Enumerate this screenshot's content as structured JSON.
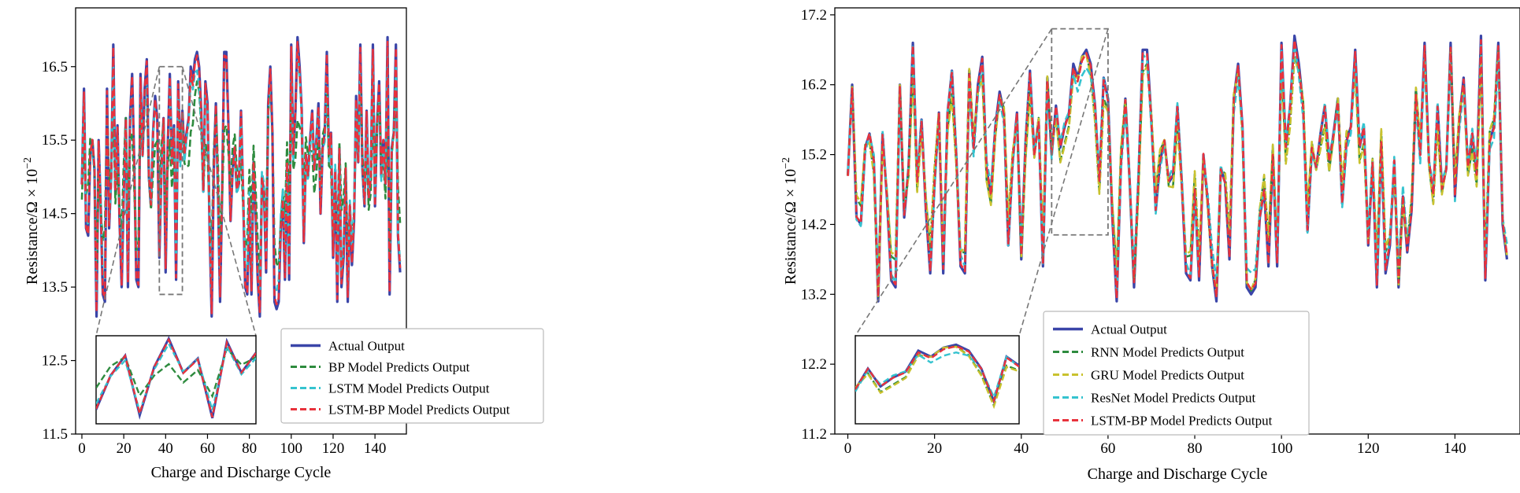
{
  "chart_data": [
    {
      "type": "line",
      "xlabel": "Charge and Discharge Cycle",
      "ylabel": "Resistance/Ω × 10",
      "ylabel_exp": "−2",
      "xlim": [
        -3,
        155
      ],
      "ylim": [
        11.5,
        17.3
      ],
      "xticks": [
        "0",
        "20",
        "40",
        "60",
        "80",
        "100",
        "120",
        "140"
      ],
      "yticks": [
        "11.5",
        "12.5",
        "13.5",
        "14.5",
        "15.5",
        "16.5"
      ],
      "legend_position": "lower-center",
      "inset_zoom_x": [
        37,
        48
      ],
      "inset_zoom_y": [
        13.4,
        16.5
      ],
      "actual": [
        14.9,
        16.2,
        14.3,
        14.2,
        15.3,
        15.5,
        15.1,
        13.1,
        15.5,
        14.6,
        13.4,
        13.3,
        16.2,
        14.3,
        15.0,
        16.8,
        14.8,
        15.7,
        14.4,
        13.5,
        14.8,
        15.8,
        13.5,
        15.8,
        16.4,
        15.2,
        13.6,
        13.5,
        16.4,
        15.3,
        16.2,
        16.6,
        15.0,
        14.6,
        15.6,
        16.1,
        15.8,
        13.9,
        15.1,
        15.8,
        13.7,
        15.4,
        16.4,
        15.2,
        15.7,
        13.6,
        16.3,
        15.2,
        15.9,
        15.3,
        15.6,
        15.8,
        16.5,
        16.3,
        16.6,
        16.7,
        16.5,
        15.9,
        14.8,
        16.3,
        16.0,
        14.3,
        13.1,
        15.1,
        16.0,
        14.8,
        13.3,
        14.8,
        16.7,
        16.7,
        15.7,
        14.4,
        15.1,
        15.4,
        14.8,
        14.9,
        15.9,
        14.8,
        13.5,
        13.4,
        14.7,
        13.4,
        15.2,
        14.5,
        13.6,
        13.1,
        15.0,
        14.8,
        13.7,
        16.0,
        16.5,
        15.6,
        13.3,
        13.2,
        13.3,
        14.3,
        14.7,
        13.6,
        15.2,
        13.6,
        16.8,
        15.3,
        15.9,
        16.9,
        16.5,
        15.9,
        14.1,
        15.3,
        15.0,
        15.5,
        15.9,
        15.1,
        15.5,
        16.0,
        14.5,
        15.4,
        15.6,
        16.7,
        15.3,
        15.6,
        13.9,
        15.1,
        13.3,
        15.4,
        13.5,
        13.9,
        15.1,
        13.3,
        14.6,
        13.8,
        14.4,
        16.1,
        15.2,
        16.8,
        15.1,
        14.6,
        15.9,
        14.7,
        15.0,
        16.8,
        14.6,
        15.7,
        16.3,
        15.0,
        15.5,
        14.9,
        16.9,
        13.4,
        15.4,
        15.6,
        16.8,
        14.2,
        13.7
      ],
      "series": [
        {
          "name": "Actual Output",
          "color": "#3a45a8",
          "dash": "solid"
        },
        {
          "name": "BP Model Predicts Output",
          "color": "#2e8b3e",
          "dash": "dashed",
          "offset": 0.55,
          "blend": 0.45
        },
        {
          "name": "LSTM Model Predicts Output",
          "color": "#35c3cf",
          "dash": "dashed",
          "offset": 0.12,
          "blend": 0.15
        },
        {
          "name": "LSTM-BP Model Predicts Output",
          "color": "#e8323c",
          "dash": "dashed",
          "offset": 0.03,
          "blend": 0.03
        }
      ]
    },
    {
      "type": "line",
      "xlabel": "Charge and Discharge Cycle",
      "ylabel": "Resistance/Ω × 10",
      "ylabel_exp": "−2",
      "xlim": [
        -3,
        155
      ],
      "ylim": [
        11.2,
        17.3
      ],
      "xticks": [
        "0",
        "20",
        "40",
        "60",
        "80",
        "100",
        "120",
        "140"
      ],
      "yticks": [
        "11.2",
        "12.2",
        "13.2",
        "14.2",
        "15.2",
        "16.2",
        "17.2"
      ],
      "legend_position": "lower-center",
      "inset_zoom_x": [
        47,
        60
      ],
      "inset_zoom_y": [
        14.05,
        17.0
      ],
      "actual": [
        14.9,
        16.2,
        14.3,
        14.2,
        15.3,
        15.5,
        15.1,
        13.1,
        15.5,
        14.6,
        13.4,
        13.3,
        16.2,
        14.3,
        15.0,
        16.8,
        14.8,
        15.7,
        14.4,
        13.5,
        14.8,
        15.8,
        13.5,
        15.8,
        16.4,
        15.2,
        13.6,
        13.5,
        16.4,
        15.3,
        16.2,
        16.6,
        15.0,
        14.6,
        15.6,
        16.1,
        15.8,
        13.9,
        15.1,
        15.8,
        13.7,
        15.4,
        16.4,
        15.2,
        15.7,
        13.6,
        16.3,
        15.2,
        15.9,
        15.3,
        15.6,
        15.8,
        16.5,
        16.3,
        16.6,
        16.7,
        16.5,
        15.9,
        14.8,
        16.3,
        16.0,
        14.3,
        13.1,
        15.1,
        16.0,
        14.8,
        13.3,
        14.8,
        16.7,
        16.7,
        15.7,
        14.4,
        15.1,
        15.4,
        14.8,
        14.9,
        15.9,
        14.8,
        13.5,
        13.4,
        14.7,
        13.4,
        15.2,
        14.5,
        13.6,
        13.1,
        15.0,
        14.8,
        13.7,
        16.0,
        16.5,
        15.6,
        13.3,
        13.2,
        13.3,
        14.3,
        14.7,
        13.6,
        15.2,
        13.6,
        16.8,
        15.3,
        15.9,
        16.9,
        16.5,
        15.9,
        14.1,
        15.3,
        15.0,
        15.5,
        15.9,
        15.1,
        15.5,
        16.0,
        14.5,
        15.4,
        15.6,
        16.7,
        15.3,
        15.6,
        13.9,
        15.1,
        13.3,
        15.4,
        13.5,
        13.9,
        15.1,
        13.3,
        14.6,
        13.8,
        14.4,
        16.1,
        15.2,
        16.8,
        15.1,
        14.6,
        15.9,
        14.7,
        15.0,
        16.8,
        14.6,
        15.7,
        16.3,
        15.0,
        15.5,
        14.9,
        16.9,
        13.4,
        15.4,
        15.6,
        16.8,
        14.2,
        13.7
      ],
      "series": [
        {
          "name": "Actual Output",
          "color": "#3a45a8",
          "dash": "solid"
        },
        {
          "name": "RNN Model Predicts Output",
          "color": "#2e8b3e",
          "dash": "dashed",
          "offset": 0.3,
          "blend": 0.12
        },
        {
          "name": "GRU Model Predicts Output",
          "color": "#c9c22e",
          "dash": "dashed",
          "offset": 0.35,
          "blend": 0.14
        },
        {
          "name": "ResNet Model Predicts Output",
          "color": "#35c3cf",
          "dash": "dashed",
          "offset": 0.2,
          "blend": 0.1
        },
        {
          "name": "LSTM-BP Model Predicts Output",
          "color": "#e8323c",
          "dash": "dashed",
          "offset": 0.03,
          "blend": 0.03
        }
      ]
    }
  ]
}
